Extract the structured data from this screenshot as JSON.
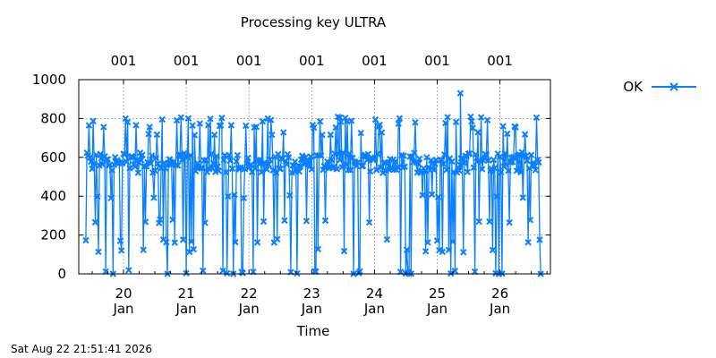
{
  "chart_data": {
    "type": "line",
    "title": "Processing key ULTRA",
    "xlabel": "Time",
    "ylabel": "",
    "ylim": [
      0,
      1000
    ],
    "y_ticks": [
      0,
      200,
      400,
      600,
      800,
      1000
    ],
    "x_range_days": [
      "19 Jan",
      "26 Jan"
    ],
    "x_ticks": [
      {
        "day": "20",
        "month": "Jan"
      },
      {
        "day": "21",
        "month": "Jan"
      },
      {
        "day": "22",
        "month": "Jan"
      },
      {
        "day": "23",
        "month": "Jan"
      },
      {
        "day": "24",
        "month": "Jan"
      },
      {
        "day": "25",
        "month": "Jan"
      },
      {
        "day": "26",
        "month": "Jan"
      }
    ],
    "top_ticks": [
      "001",
      "001",
      "001",
      "001",
      "001",
      "001",
      "001"
    ],
    "grid": true,
    "legend_position": "right",
    "series": [
      {
        "name": "OK",
        "color": "#0a7fff",
        "marker": "x-marker",
        "x_start_days": 19.4,
        "x_end_days": 26.65,
        "points_per_day": 60,
        "band": [
          520,
          620
        ],
        "levels": [
          0,
          10,
          120,
          170,
          270,
          400,
          540,
          580,
          620,
          720,
          760,
          780,
          800
        ],
        "notable_points": [
          {
            "x_days": 25.37,
            "y": 930
          },
          {
            "x_days": 23.45,
            "y": 805
          }
        ]
      }
    ]
  },
  "footer": {
    "timestamp": "Sat Aug 22 21:51:41 2026"
  }
}
